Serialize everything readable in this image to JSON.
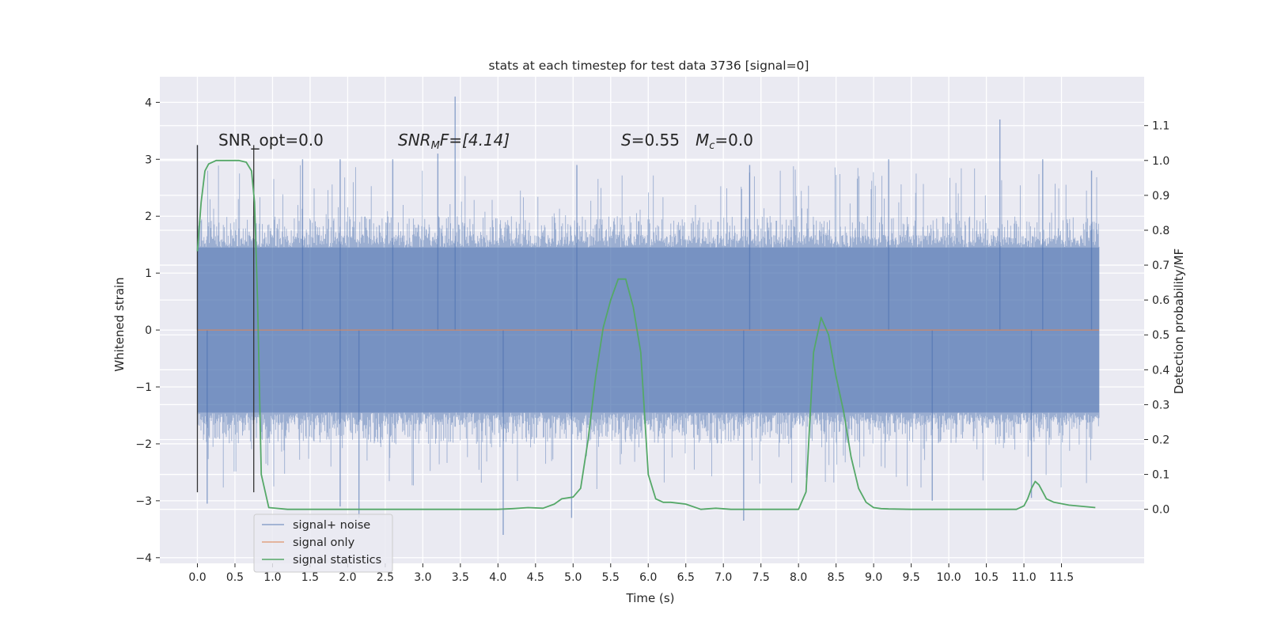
{
  "chart_data": {
    "type": "line",
    "title": "stats at each timestep for test data 3736 [signal=0]",
    "xlabel": "Time (s)",
    "ylabel": "Whitened strain",
    "y2label": "Detection probability/MF",
    "xlim": [
      -0.5,
      12.6
    ],
    "ylim": [
      -4.1,
      4.45
    ],
    "y2lim": [
      -0.155,
      1.24
    ],
    "xticks": [
      0.0,
      0.5,
      1.0,
      1.5,
      2.0,
      2.5,
      3.0,
      3.5,
      4.0,
      4.5,
      5.0,
      5.5,
      6.0,
      6.5,
      7.0,
      7.5,
      8.0,
      8.5,
      9.0,
      9.5,
      10.0,
      10.5,
      11.0,
      11.5
    ],
    "xtick_labels": [
      "0.0",
      "0.5",
      "1.0",
      "1.5",
      "2.0",
      "2.5",
      "3.0",
      "3.5",
      "4.0",
      "4.5",
      "5.0",
      "5.5",
      "6.0",
      "6.5",
      "7.0",
      "7.5",
      "8.0",
      "8.5",
      "9.0",
      "9.5",
      "10.0",
      "10.5",
      "11.0",
      "11.5"
    ],
    "yticks": [
      4,
      3,
      2,
      1,
      0,
      -1,
      -2,
      -3,
      -4
    ],
    "ytick_labels": [
      "4",
      "3",
      "2",
      "1",
      "0",
      "−1",
      "−2",
      "−3",
      "−4"
    ],
    "y2ticks": [
      1.1,
      1.0,
      0.9,
      0.8,
      0.7,
      0.6,
      0.5,
      0.4,
      0.3,
      0.2,
      0.1,
      0.0
    ],
    "y2tick_labels": [
      "1.1",
      "1.0",
      "0.9",
      "0.8",
      "0.7",
      "0.6",
      "0.5",
      "0.4",
      "0.3",
      "0.2",
      "0.1",
      "0.0"
    ],
    "grid": true,
    "legend_position": "lower-left",
    "annotations": {
      "snr_opt": "SNR_opt=0.0",
      "snr_mf_main": "SNR",
      "snr_mf_sub": "M",
      "snr_mf_rest": "F=[4.14]",
      "s_symbol": "S",
      "s_value": "=0.55",
      "mc_symbol": "M",
      "mc_sub": "c",
      "mc_value": "=0.0"
    },
    "series": [
      {
        "name": "signal+ noise",
        "color": "#4c72b0",
        "noise": {
          "t_range": [
            0.0,
            12.0
          ],
          "core_abs_max": 1.45,
          "typical_abs_max": 2.0,
          "peak_highs": [
            [
              0.0,
              3.25
            ],
            [
              1.4,
              3.0
            ],
            [
              1.9,
              3.0
            ],
            [
              2.6,
              3.0
            ],
            [
              3.2,
              3.1
            ],
            [
              3.43,
              4.1
            ],
            [
              5.05,
              2.9
            ],
            [
              7.35,
              2.9
            ],
            [
              9.2,
              3.0
            ],
            [
              10.68,
              3.7
            ],
            [
              11.25,
              3.0
            ],
            [
              11.9,
              2.8
            ]
          ],
          "peak_lows": [
            [
              0.13,
              -3.05
            ],
            [
              2.15,
              -3.3
            ],
            [
              4.07,
              -3.6
            ],
            [
              4.98,
              -3.3
            ],
            [
              7.27,
              -3.35
            ],
            [
              9.78,
              -3.0
            ],
            [
              11.1,
              -2.95
            ],
            [
              1.9,
              -3.1
            ]
          ]
        }
      },
      {
        "name": "signal only",
        "color": "#dd8452",
        "x": [
          0.0,
          12.0
        ],
        "y": [
          0.0,
          0.0
        ]
      },
      {
        "name": "signal statistics",
        "color": "#55a868",
        "axis": "right",
        "x": [
          0.0,
          0.05,
          0.1,
          0.15,
          0.25,
          0.4,
          0.55,
          0.65,
          0.72,
          0.76,
          0.8,
          0.85,
          0.95,
          1.2,
          2.0,
          3.0,
          4.0,
          4.2,
          4.4,
          4.6,
          4.75,
          4.85,
          5.0,
          5.1,
          5.2,
          5.3,
          5.4,
          5.5,
          5.6,
          5.7,
          5.8,
          5.9,
          6.0,
          6.1,
          6.2,
          6.3,
          6.5,
          6.7,
          6.9,
          7.1,
          7.4,
          7.7,
          8.0,
          8.1,
          8.2,
          8.3,
          8.4,
          8.5,
          8.6,
          8.7,
          8.8,
          8.9,
          9.0,
          9.1,
          9.2,
          9.5,
          10.0,
          10.5,
          10.9,
          11.0,
          11.05,
          11.1,
          11.15,
          11.2,
          11.25,
          11.3,
          11.4,
          11.6,
          11.95
        ],
        "y": [
          0.74,
          0.88,
          0.97,
          0.99,
          1.0,
          1.0,
          1.0,
          0.995,
          0.97,
          0.88,
          0.6,
          0.1,
          0.005,
          0.0,
          0.0,
          0.0,
          0.0,
          0.002,
          0.005,
          0.003,
          0.015,
          0.03,
          0.035,
          0.06,
          0.2,
          0.38,
          0.52,
          0.6,
          0.66,
          0.66,
          0.58,
          0.45,
          0.1,
          0.03,
          0.02,
          0.02,
          0.015,
          0.0,
          0.003,
          0.0,
          0.0,
          0.0,
          0.0,
          0.05,
          0.45,
          0.55,
          0.5,
          0.38,
          0.28,
          0.15,
          0.06,
          0.02,
          0.005,
          0.002,
          0.001,
          0.0,
          0.0,
          0.0,
          0.0,
          0.01,
          0.03,
          0.06,
          0.08,
          0.07,
          0.05,
          0.03,
          0.02,
          0.012,
          0.005
        ]
      }
    ],
    "markers": [
      {
        "x": 0.0,
        "ymin": -2.85,
        "ymax": 3.25
      },
      {
        "x": 0.75,
        "ymin": -2.85,
        "ymax": 3.25
      }
    ]
  }
}
